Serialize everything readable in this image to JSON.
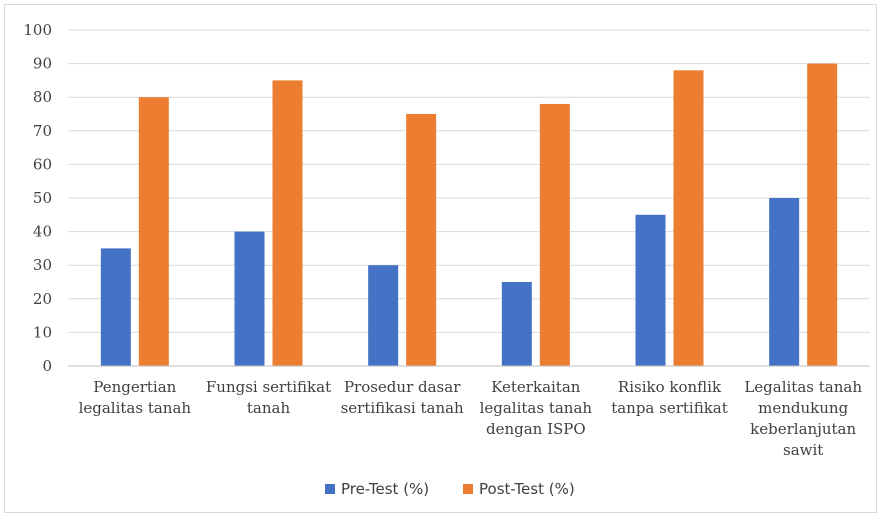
{
  "chart_data": {
    "type": "bar",
    "categories": [
      [
        "Pengertian",
        "legalitas tanah"
      ],
      [
        "Fungsi sertifikat",
        "tanah"
      ],
      [
        "Prosedur dasar",
        "sertifikasi tanah"
      ],
      [
        "Keterkaitan",
        "legalitas tanah",
        "dengan ISPO"
      ],
      [
        "Risiko konflik",
        "tanpa sertifikat"
      ],
      [
        "Legalitas tanah",
        "mendukung",
        "keberlanjutan",
        "sawit"
      ]
    ],
    "series": [
      {
        "name": "Pre-Test (%)",
        "values": [
          35,
          40,
          30,
          25,
          45,
          50
        ],
        "color": "#4472c4"
      },
      {
        "name": "Post-Test (%)",
        "values": [
          80,
          85,
          75,
          78,
          88,
          90
        ],
        "color": "#ed7d31"
      }
    ],
    "ylim": [
      0,
      100
    ],
    "yticks": [
      0,
      10,
      20,
      30,
      40,
      50,
      60,
      70,
      80,
      90,
      100
    ],
    "grid": true,
    "legend_position": "bottom",
    "title": "",
    "xlabel": "",
    "ylabel": ""
  }
}
